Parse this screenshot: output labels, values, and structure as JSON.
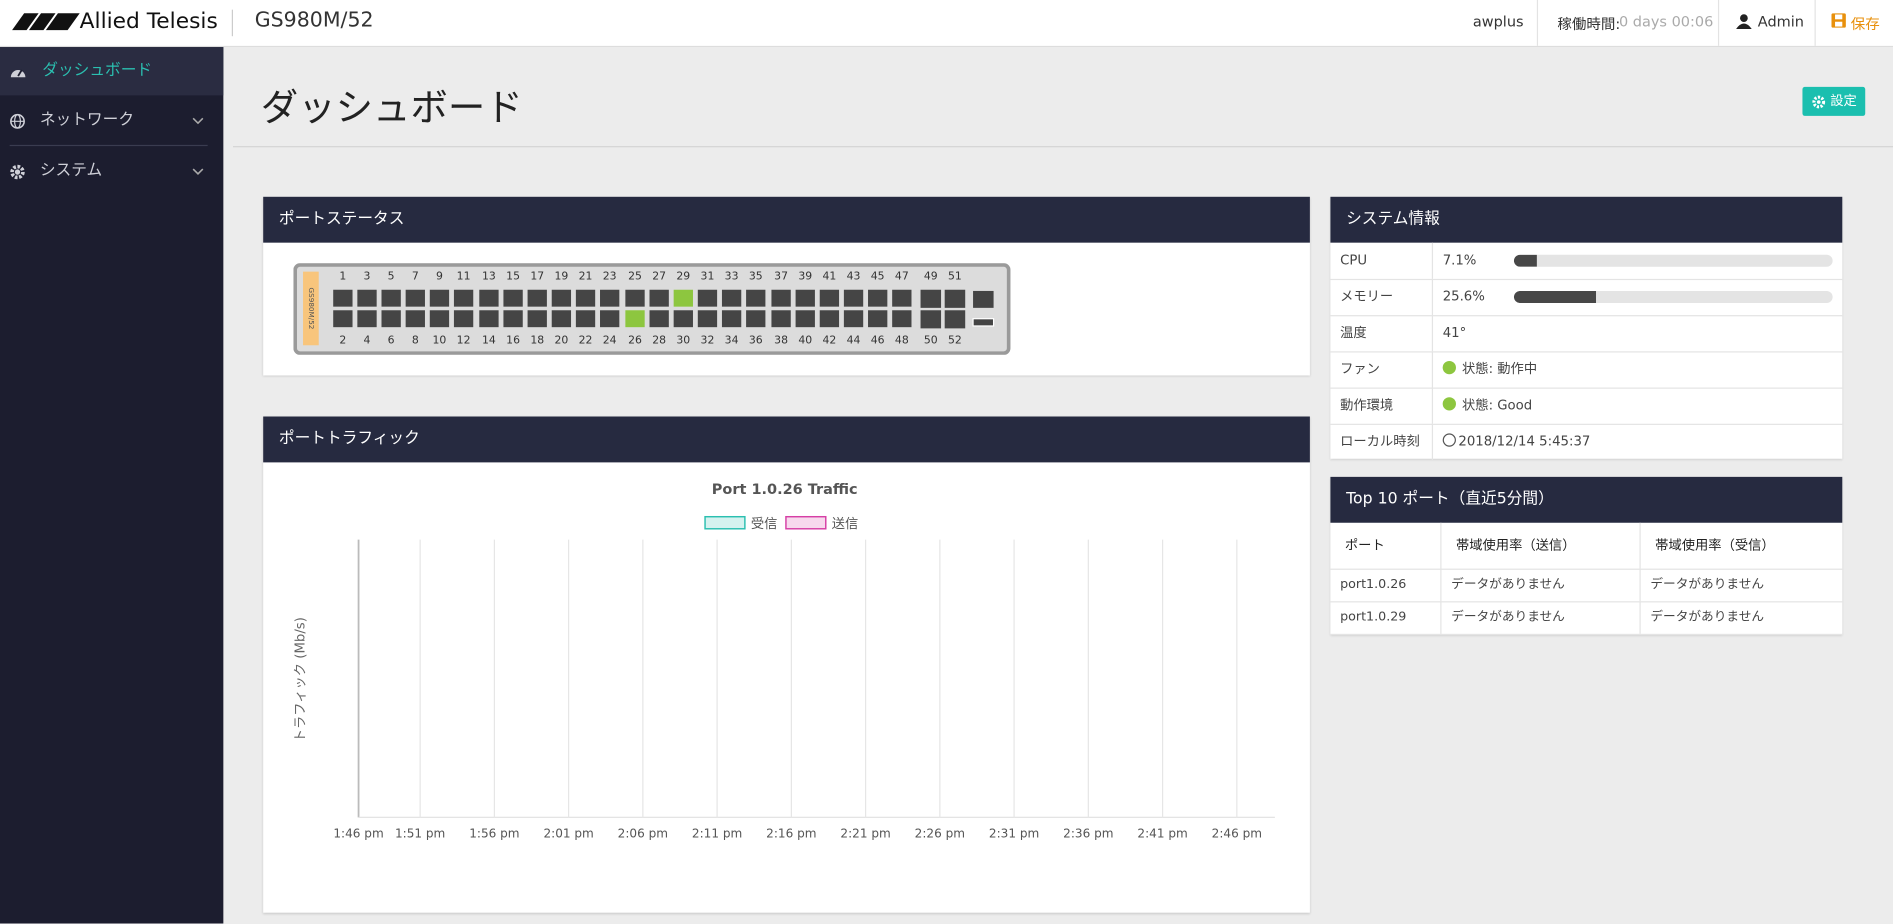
{
  "header": {
    "brand": "Allied Telesis",
    "model": "GS980M/52",
    "host": "awplus",
    "uptime_label": "稼働時間:",
    "uptime": "0 days 00:06",
    "user": "Admin",
    "save": "保存"
  },
  "sidebar": {
    "items": [
      "ダッシュボード",
      "ネットワーク",
      "システム"
    ]
  },
  "page": {
    "title": "ダッシュボード",
    "settings_button": "設定"
  },
  "port_status": {
    "title": "ポートステータス",
    "device_label": "GS980M/52",
    "top_row": [
      1,
      3,
      5,
      7,
      9,
      11,
      13,
      15,
      17,
      19,
      21,
      23,
      25,
      27,
      29,
      31,
      33,
      35,
      37,
      39,
      41,
      43,
      45,
      47,
      49,
      51
    ],
    "bottom_row": [
      2,
      4,
      6,
      8,
      10,
      12,
      14,
      16,
      18,
      20,
      22,
      24,
      26,
      28,
      30,
      32,
      34,
      36,
      38,
      40,
      42,
      44,
      46,
      48,
      50,
      52
    ],
    "link_up": [
      26,
      29
    ]
  },
  "port_traffic": {
    "title": "ポートトラフィック",
    "chart_title": "Port 1.0.26 Traffic",
    "legend": [
      {
        "name": "受信",
        "color": "#2bbfb0"
      },
      {
        "name": "送信",
        "color": "#d63fa5"
      }
    ],
    "y_label": "トラフィック (Mb/s)",
    "x_ticks": [
      "1:46 pm",
      "1:51 pm",
      "1:56 pm",
      "2:01 pm",
      "2:06 pm",
      "2:11 pm",
      "2:16 pm",
      "2:21 pm",
      "2:26 pm",
      "2:31 pm",
      "2:36 pm",
      "2:41 pm",
      "2:46 pm"
    ]
  },
  "system_info": {
    "title": "システム情報",
    "rows": [
      {
        "label": "CPU",
        "value": 7.1,
        "value_label": "7.1%"
      },
      {
        "label": "メモリー",
        "value": 25.6,
        "value_label": "25.6%"
      },
      {
        "label": "温度",
        "text": "41°"
      },
      {
        "label": "ファン",
        "text": "状態: 動作中"
      },
      {
        "label": "動作環境",
        "text": "状態: Good"
      },
      {
        "label": "ローカル時刻",
        "text": "2018/12/14 5:45:37"
      }
    ]
  },
  "top_ports": {
    "title": "Top 10 ポート（直近5分間）",
    "columns": [
      "ポート",
      "帯域使用率（送信）",
      "帯域使用率（受信）"
    ],
    "rows": [
      [
        "port1.0.26",
        "データがありません",
        "データがありません"
      ],
      [
        "port1.0.29",
        "データがありません",
        "データがありません"
      ]
    ]
  }
}
